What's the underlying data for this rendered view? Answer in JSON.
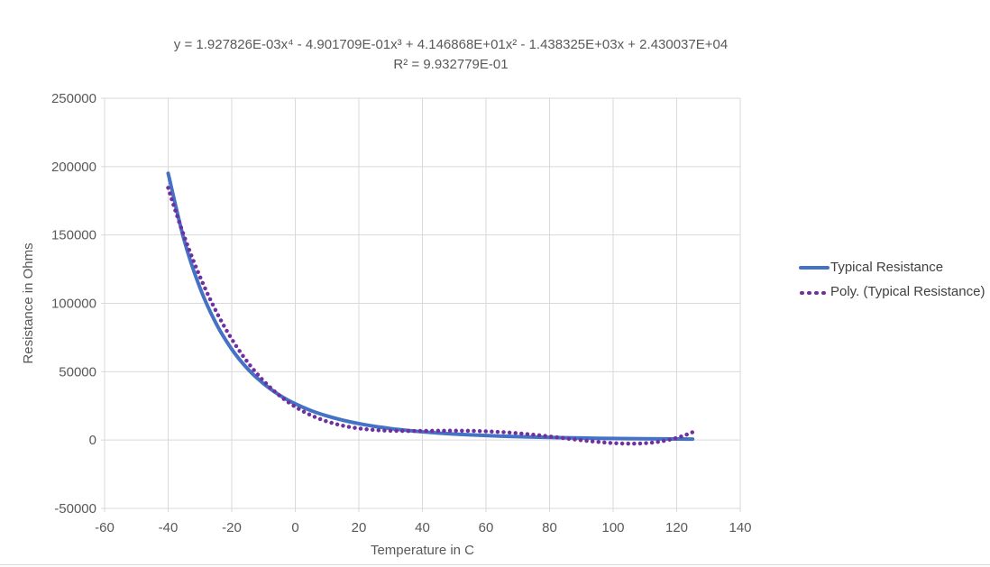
{
  "chart_data": {
    "type": "line",
    "title_line1": "y = 1.927826E-03x⁴ - 4.901709E-01x³ + 4.146868E+01x² - 1.438325E+03x + 2.430037E+04",
    "title_line2": "R² = 9.932779E-01",
    "xlabel": "Temperature in C",
    "ylabel": "Resistance in Ohms",
    "xlim": [
      -60,
      140
    ],
    "ylim": [
      -50000,
      250000
    ],
    "x_ticks": [
      -60,
      -40,
      -20,
      0,
      20,
      40,
      60,
      80,
      100,
      120,
      140
    ],
    "x_tick_labels": [
      "-60",
      "-40",
      "-20",
      "0",
      "20",
      "40",
      "60",
      "80",
      "100",
      "120",
      "140"
    ],
    "y_ticks": [
      -50000,
      0,
      50000,
      100000,
      150000,
      200000,
      250000
    ],
    "y_tick_labels": [
      "-50000",
      "0",
      "50000",
      "100000",
      "150000",
      "200000",
      "250000"
    ],
    "grid": true,
    "legend_position": "right",
    "colors": {
      "grid": "#d9d9d9",
      "axis_text": "#595959",
      "title_text": "#595959",
      "legend_text": "#404040"
    },
    "series": [
      {
        "name": "Typical Resistance",
        "style": "solid-line",
        "color": "#4472C4",
        "x": [
          -40,
          -35,
          -30,
          -25,
          -20,
          -15,
          -10,
          -5,
          0,
          5,
          10,
          15,
          20,
          25,
          30,
          35,
          40,
          45,
          50,
          55,
          60,
          65,
          70,
          75,
          80,
          85,
          90,
          95,
          100,
          105,
          110,
          115,
          120,
          125
        ],
        "y": [
          195100,
          146500,
          111400,
          85600,
          66500,
          52100,
          41300,
          32900,
          26500,
          21500,
          17600,
          14500,
          12000,
          10000,
          8400,
          7100,
          6000,
          5100,
          4400,
          3800,
          3300,
          2800,
          2500,
          2200,
          1900,
          1700,
          1500,
          1300,
          1175,
          1050,
          940,
          845,
          760,
          690
        ]
      },
      {
        "name": "Poly. (Typical Resistance)",
        "style": "dotted-trendline",
        "color": "#7030A0",
        "poly_coefficients": [
          0.001927826,
          -0.4901709,
          41.46868,
          -1438.325,
          24300.37
        ],
        "x_range": [
          -40,
          125
        ]
      }
    ]
  }
}
